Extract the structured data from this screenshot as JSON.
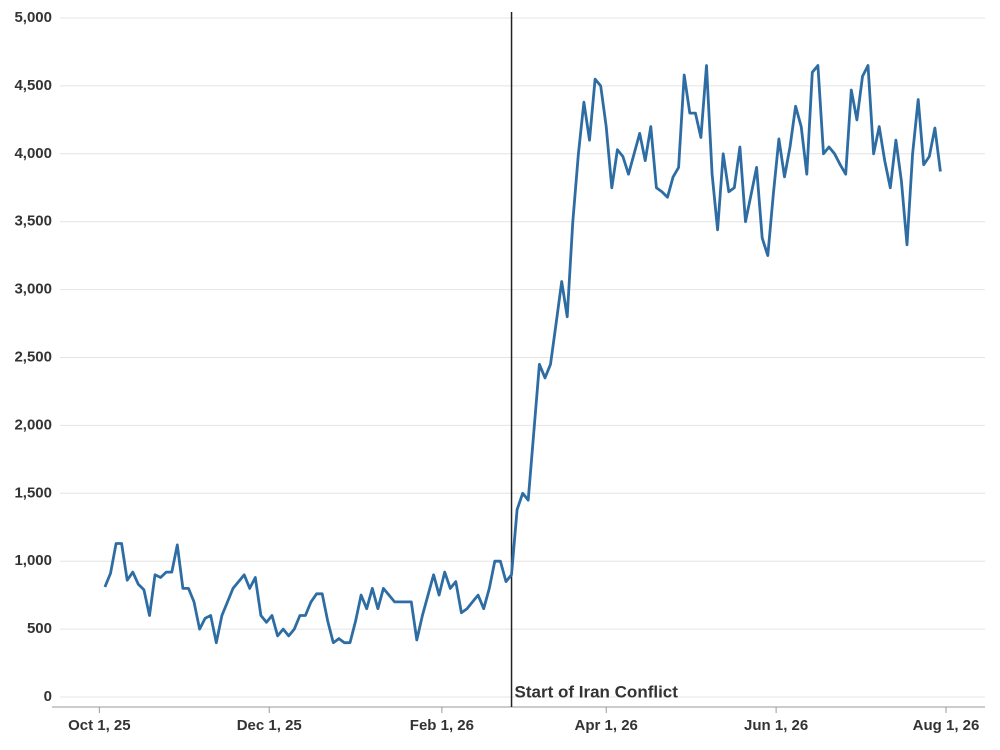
{
  "chart_data": {
    "type": "line",
    "x": [
      "2025-10-03",
      "2025-10-05",
      "2025-10-07",
      "2025-10-09",
      "2025-10-11",
      "2025-10-13",
      "2025-10-15",
      "2025-10-17",
      "2025-10-19",
      "2025-10-21",
      "2025-10-23",
      "2025-10-25",
      "2025-10-27",
      "2025-10-29",
      "2025-10-31",
      "2025-11-02",
      "2025-11-04",
      "2025-11-06",
      "2025-11-08",
      "2025-11-10",
      "2025-11-12",
      "2025-11-14",
      "2025-11-16",
      "2025-11-18",
      "2025-11-20",
      "2025-11-22",
      "2025-11-24",
      "2025-11-26",
      "2025-11-28",
      "2025-11-30",
      "2025-12-02",
      "2025-12-04",
      "2025-12-06",
      "2025-12-08",
      "2025-12-10",
      "2025-12-12",
      "2025-12-14",
      "2025-12-16",
      "2025-12-18",
      "2025-12-20",
      "2025-12-22",
      "2025-12-24",
      "2025-12-26",
      "2025-12-28",
      "2025-12-30",
      "2026-01-01",
      "2026-01-03",
      "2026-01-05",
      "2026-01-07",
      "2026-01-09",
      "2026-01-11",
      "2026-01-13",
      "2026-01-15",
      "2026-01-17",
      "2026-01-19",
      "2026-01-21",
      "2026-01-23",
      "2026-01-25",
      "2026-01-27",
      "2026-01-29",
      "2026-01-31",
      "2026-02-02",
      "2026-02-04",
      "2026-02-06",
      "2026-02-08",
      "2026-02-10",
      "2026-02-12",
      "2026-02-14",
      "2026-02-16",
      "2026-02-18",
      "2026-02-20",
      "2026-02-22",
      "2026-02-24",
      "2026-02-26",
      "2026-02-28",
      "2026-03-02",
      "2026-03-04",
      "2026-03-06",
      "2026-03-08",
      "2026-03-10",
      "2026-03-12",
      "2026-03-14",
      "2026-03-16",
      "2026-03-18",
      "2026-03-20",
      "2026-03-22",
      "2026-03-24",
      "2026-03-26",
      "2026-03-28",
      "2026-03-30",
      "2026-04-01",
      "2026-04-03",
      "2026-04-05",
      "2026-04-07",
      "2026-04-09",
      "2026-04-11",
      "2026-04-13",
      "2026-04-15",
      "2026-04-17",
      "2026-04-19",
      "2026-04-21",
      "2026-04-23",
      "2026-04-25",
      "2026-04-27",
      "2026-04-29",
      "2026-05-01",
      "2026-05-03",
      "2026-05-05",
      "2026-05-07",
      "2026-05-09",
      "2026-05-11",
      "2026-05-13",
      "2026-05-15",
      "2026-05-17",
      "2026-05-19",
      "2026-05-21",
      "2026-05-23",
      "2026-05-25",
      "2026-05-27",
      "2026-05-29",
      "2026-05-31",
      "2026-06-02",
      "2026-06-04",
      "2026-06-06",
      "2026-06-08",
      "2026-06-10",
      "2026-06-12",
      "2026-06-14",
      "2026-06-16",
      "2026-06-18",
      "2026-06-20",
      "2026-06-22",
      "2026-06-24",
      "2026-06-26",
      "2026-06-28",
      "2026-06-30",
      "2026-07-02",
      "2026-07-04",
      "2026-07-06",
      "2026-07-08",
      "2026-07-10",
      "2026-07-12",
      "2026-07-14",
      "2026-07-16",
      "2026-07-18",
      "2026-07-20",
      "2026-07-22",
      "2026-07-24",
      "2026-07-26",
      "2026-07-28",
      "2026-07-30"
    ],
    "values": [
      810,
      910,
      1130,
      1130,
      860,
      920,
      830,
      790,
      600,
      900,
      880,
      920,
      920,
      1120,
      800,
      800,
      700,
      500,
      580,
      600,
      400,
      600,
      700,
      800,
      850,
      900,
      800,
      880,
      600,
      550,
      600,
      450,
      500,
      450,
      500,
      600,
      600,
      700,
      760,
      760,
      560,
      400,
      430,
      400,
      400,
      560,
      750,
      650,
      800,
      650,
      800,
      750,
      700,
      700,
      700,
      700,
      420,
      600,
      750,
      900,
      750,
      920,
      800,
      850,
      620,
      650,
      700,
      750,
      650,
      800,
      1000,
      1000,
      850,
      900,
      1380,
      1500,
      1450,
      1950,
      2450,
      2350,
      2450,
      2750,
      3060,
      2800,
      3500,
      4000,
      4380,
      4100,
      4550,
      4500,
      4200,
      3750,
      4030,
      3980,
      3850,
      4000,
      4150,
      3950,
      4200,
      3750,
      3720,
      3680,
      3830,
      3900,
      4580,
      4300,
      4300,
      4120,
      4650,
      3850,
      3440,
      4000,
      3720,
      3750,
      4050,
      3500,
      3700,
      3900,
      3380,
      3250,
      3700,
      4110,
      3830,
      4050,
      4350,
      4200,
      3850,
      4600,
      4650,
      4000,
      4050,
      4000,
      3920,
      3850,
      4470,
      4250,
      4570,
      4650,
      4000,
      4200,
      3950,
      3750,
      4100,
      3800,
      3330,
      4000,
      4400,
      3920,
      3980,
      4190,
      3870
    ],
    "color": "#2e6da4",
    "xlim": [
      "2025-09-14",
      "2026-08-15"
    ],
    "xticks": [
      {
        "value": "2025-10-01",
        "label": "Oct 1, 25"
      },
      {
        "value": "2025-12-01",
        "label": "Dec 1, 25"
      },
      {
        "value": "2026-02-01",
        "label": "Feb 1, 26"
      },
      {
        "value": "2026-04-01",
        "label": "Apr 1, 26"
      },
      {
        "value": "2026-06-01",
        "label": "Jun 1, 26"
      },
      {
        "value": "2026-08-01",
        "label": "Aug 1, 26"
      }
    ],
    "ylim": [
      0,
      5000
    ],
    "yticks": [
      0,
      500,
      {
        "value": 1000,
        "label": "1,000"
      },
      {
        "value": 1500,
        "label": "1,500"
      },
      {
        "value": 2000,
        "label": "2,000"
      },
      {
        "value": 2500,
        "label": "2,500"
      },
      {
        "value": 3000,
        "label": "3,000"
      },
      {
        "value": 3500,
        "label": "3,500"
      },
      {
        "value": 4000,
        "label": "4,000"
      },
      {
        "value": 4500,
        "label": "4,500"
      },
      {
        "value": 5000,
        "label": "5,000"
      }
    ],
    "grid": true,
    "annotations": [
      {
        "text": "Start of Iran Conflict",
        "x": "2026-02-26"
      }
    ]
  }
}
